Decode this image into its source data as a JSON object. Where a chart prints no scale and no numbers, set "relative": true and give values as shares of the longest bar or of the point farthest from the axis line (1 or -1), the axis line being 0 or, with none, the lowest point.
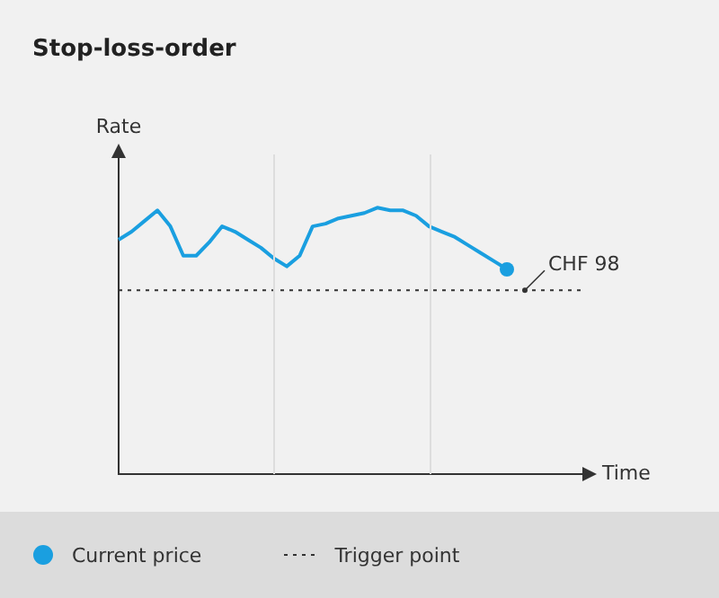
{
  "chart_data": {
    "type": "line",
    "title": "Stop-loss-order",
    "xlabel": "Time",
    "ylabel": "Rate",
    "relative": true,
    "categories": [
      null,
      null,
      null,
      null,
      null,
      null,
      null,
      null,
      null,
      null,
      null,
      null,
      null,
      null,
      null,
      null,
      null,
      null,
      null,
      null,
      null,
      null,
      null,
      null,
      null,
      null,
      null,
      null,
      null,
      null,
      null,
      null,
      null,
      null,
      null,
      null,
      null
    ],
    "grid": false,
    "series": [
      {
        "name": "Current price",
        "color": "#1a9fe0",
        "marker": "none",
        "values": [
          0.88,
          0.91,
          0.95,
          0.99,
          0.93,
          0.82,
          0.82,
          0.87,
          0.93,
          0.91,
          0.88,
          0.85,
          0.81,
          0.78,
          0.82,
          0.93,
          0.94,
          0.96,
          0.97,
          0.98,
          1,
          0.99,
          0.99,
          0.97,
          0.93,
          0.91,
          0.89,
          0.86,
          0.83,
          0.8,
          0.77,
          null,
          null,
          null,
          null,
          null,
          null
        ]
      }
    ],
    "ref_lines": [
      {
        "axis": "y",
        "value": 0.69,
        "label": "Trigger point",
        "color": "#333333",
        "line_style": "dotted"
      }
    ],
    "annotations": [
      "CHF 98"
    ],
    "legend": "bottom"
  }
}
